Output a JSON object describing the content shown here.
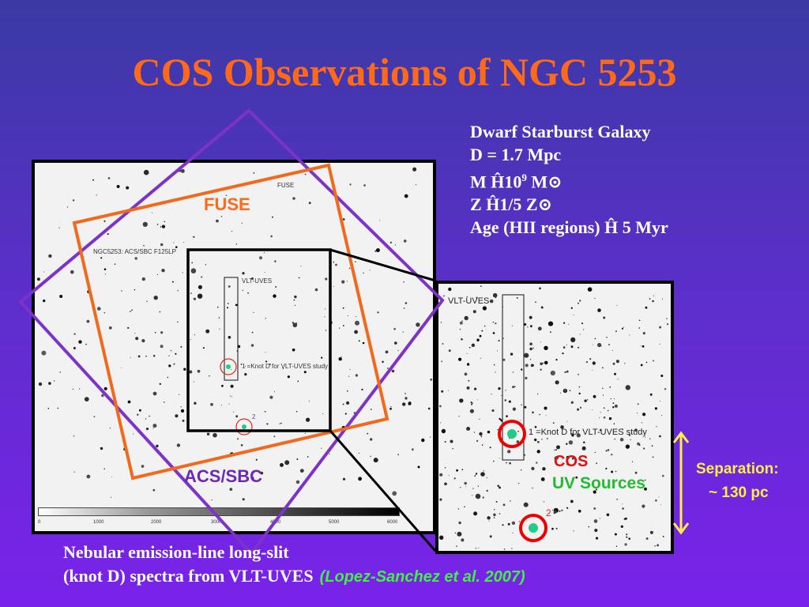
{
  "title": "COS Observations of NGC 5253",
  "facts": [
    "Dwarf Starburst Galaxy",
    "D =  1.7 Mpc",
    "M",
    "10",
    "9",
    "M",
    "Z",
    "1/5 Z",
    "Age (HII regions)",
    "5 Myr"
  ],
  "fact_symbols": [
    "Ĥ",
    "⊙"
  ],
  "left_panel": {
    "fuse_small": "FUSE",
    "header": "NGC5253: ACS/SBC F125LP",
    "slit": "VLT-UVES",
    "knot_note": "1  =Knot D for VLT-UVES study",
    "source2": "2",
    "colorbar_ticks": [
      "0",
      "1000",
      "2000",
      "3000",
      "4000",
      "5000",
      "6000"
    ]
  },
  "right_panel": {
    "slit": "VLT-UVES",
    "knot_note": "1  =Knot D for VLT-UVES study",
    "source2": "2"
  },
  "labels": {
    "fuse": "FUSE",
    "acs": "ACS/SBC",
    "cos": "COS",
    "uv": "UV Sources",
    "separation": "Separation:",
    "separation_value": "~ 130 pc"
  },
  "footer": {
    "line1": "Nebular emission-line long-slit",
    "line2": "(knot D) spectra from VLT-UVES",
    "citation": "(Lopez-Sanchez et al. 2007)"
  },
  "colors": {
    "title": "#ff6a1a",
    "fuse": "#ff6a1a",
    "acs": "#6a2ab8",
    "cos": "#dd1111",
    "uv": "#22bb33",
    "separation": "#ffee44"
  }
}
